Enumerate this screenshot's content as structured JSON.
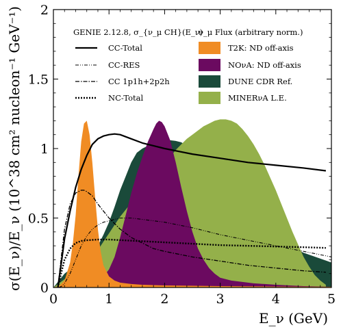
{
  "chart_data": {
    "type": "line",
    "title": "",
    "xlabel": "E_ν (GeV)",
    "ylabel": "σ(E_ν)/E_ν (10^38 cm² nucleon⁻¹ GeV⁻¹)",
    "xlim": [
      0,
      5
    ],
    "ylim": [
      0,
      2
    ],
    "x_ticks": [
      "0",
      "1",
      "2",
      "3",
      "4",
      "5"
    ],
    "y_ticks": [
      "0",
      "0.5",
      "1",
      "1.5",
      "2"
    ],
    "grid": false,
    "legend_cross_section": {
      "header": "GENIE 2.12.8, σ_{ν_μ CH}(E_ν)",
      "entries": [
        "CC-Total",
        "CC-RES",
        "CC 1p1h+2p2h",
        "NC-Total"
      ]
    },
    "legend_flux": {
      "header": "ν_μ Flux (arbitrary norm.)",
      "entries": [
        "T2K: ND off-axis",
        "NOνA: ND off-axis",
        "DUNE CDR Ref.",
        "MINERνA L.E."
      ]
    },
    "flux": [
      {
        "name": "DUNE CDR Ref.",
        "color": "#1a4a3a",
        "x": [
          0.0,
          0.1,
          0.2,
          0.3,
          0.4,
          0.5,
          0.6,
          0.7,
          0.8,
          0.9,
          1.0,
          1.1,
          1.2,
          1.3,
          1.4,
          1.5,
          1.6,
          1.7,
          1.8,
          1.9,
          2.0,
          2.1,
          2.2,
          2.3,
          2.4,
          2.5,
          2.6,
          2.7,
          2.8,
          2.9,
          3.0,
          3.1,
          3.2,
          3.3,
          3.4,
          3.5,
          3.6,
          3.7,
          3.8,
          3.9,
          4.0,
          4.5,
          5.0
        ],
        "y": [
          0.0,
          0.05,
          0.1,
          0.13,
          0.15,
          0.17,
          0.2,
          0.24,
          0.3,
          0.38,
          0.47,
          0.58,
          0.7,
          0.8,
          0.9,
          0.97,
          1.0,
          1.02,
          1.03,
          1.04,
          1.05,
          1.06,
          1.055,
          1.045,
          1.02,
          1.0,
          0.96,
          0.92,
          0.86,
          0.8,
          0.73,
          0.68,
          0.63,
          0.58,
          0.54,
          0.5,
          0.47,
          0.43,
          0.4,
          0.37,
          0.34,
          0.25,
          0.18
        ]
      },
      {
        "name": "MINERνA L.E.",
        "color": "#94b04a",
        "x": [
          0.0,
          0.1,
          0.2,
          0.3,
          0.4,
          0.5,
          0.6,
          0.7,
          0.8,
          0.9,
          1.0,
          1.1,
          1.2,
          1.3,
          1.4,
          1.5,
          1.6,
          1.7,
          1.8,
          1.9,
          2.0,
          2.1,
          2.2,
          2.3,
          2.4,
          2.5,
          2.6,
          2.7,
          2.8,
          2.9,
          3.0,
          3.1,
          3.2,
          3.3,
          3.4,
          3.5,
          3.6,
          3.7,
          3.8,
          3.9,
          4.0,
          4.1,
          4.2,
          4.3,
          4.4,
          4.5,
          4.6,
          4.7,
          4.8,
          4.9
        ],
        "y": [
          0.0,
          0.03,
          0.06,
          0.1,
          0.13,
          0.15,
          0.18,
          0.22,
          0.27,
          0.33,
          0.39,
          0.45,
          0.51,
          0.56,
          0.61,
          0.66,
          0.71,
          0.75,
          0.8,
          0.84,
          0.89,
          0.94,
          0.99,
          1.03,
          1.07,
          1.1,
          1.13,
          1.16,
          1.18,
          1.2,
          1.21,
          1.21,
          1.2,
          1.18,
          1.14,
          1.09,
          1.03,
          0.96,
          0.88,
          0.79,
          0.7,
          0.6,
          0.5,
          0.4,
          0.31,
          0.22,
          0.15,
          0.09,
          0.05,
          0.02
        ]
      },
      {
        "name": "NOνA: ND off-axis",
        "color": "#6b0a60",
        "x": [
          0.0,
          0.2,
          0.4,
          0.6,
          0.8,
          0.9,
          1.0,
          1.1,
          1.2,
          1.3,
          1.4,
          1.5,
          1.6,
          1.7,
          1.8,
          1.85,
          1.9,
          1.95,
          2.0,
          2.1,
          2.2,
          2.3,
          2.4,
          2.5,
          2.6,
          2.7,
          2.8,
          2.9,
          3.0,
          3.2,
          3.4,
          3.6,
          3.8,
          4.0,
          4.5,
          5.0
        ],
        "y": [
          0.0,
          0.01,
          0.02,
          0.03,
          0.05,
          0.08,
          0.13,
          0.22,
          0.36,
          0.52,
          0.68,
          0.82,
          0.94,
          1.05,
          1.14,
          1.18,
          1.2,
          1.19,
          1.16,
          1.06,
          0.9,
          0.72,
          0.55,
          0.4,
          0.28,
          0.2,
          0.14,
          0.1,
          0.07,
          0.05,
          0.04,
          0.03,
          0.025,
          0.02,
          0.01,
          0.005
        ]
      },
      {
        "name": "T2K: ND off-axis",
        "color": "#f08c24",
        "x": [
          0.0,
          0.1,
          0.2,
          0.3,
          0.35,
          0.4,
          0.45,
          0.5,
          0.55,
          0.6,
          0.65,
          0.7,
          0.75,
          0.8,
          0.85,
          0.9,
          1.0,
          1.1,
          1.2,
          1.4,
          1.6,
          2.0,
          3.0,
          4.0,
          5.0
        ],
        "y": [
          0.0,
          0.01,
          0.05,
          0.18,
          0.32,
          0.52,
          0.8,
          1.05,
          1.18,
          1.2,
          1.1,
          0.9,
          0.65,
          0.42,
          0.26,
          0.16,
          0.08,
          0.05,
          0.035,
          0.025,
          0.02,
          0.015,
          0.01,
          0.007,
          0.005
        ]
      }
    ],
    "series": [
      {
        "name": "CC-Total",
        "style": "solid",
        "x": [
          0.08,
          0.15,
          0.2,
          0.3,
          0.4,
          0.5,
          0.6,
          0.7,
          0.8,
          0.9,
          1.0,
          1.1,
          1.2,
          1.4,
          1.6,
          1.8,
          2.0,
          2.5,
          3.0,
          3.5,
          4.0,
          4.5,
          4.9
        ],
        "y": [
          0.0,
          0.2,
          0.35,
          0.55,
          0.72,
          0.85,
          0.95,
          1.03,
          1.07,
          1.09,
          1.1,
          1.105,
          1.1,
          1.07,
          1.04,
          1.02,
          1.0,
          0.96,
          0.93,
          0.9,
          0.88,
          0.86,
          0.84
        ]
      },
      {
        "name": "CC-RES",
        "style": "dash-dot-dot",
        "x": [
          0.1,
          0.15,
          0.2,
          0.3,
          0.4,
          0.5,
          0.6,
          0.7,
          0.8,
          0.9,
          1.0,
          1.2,
          1.4,
          1.6,
          1.8,
          2.0,
          2.5,
          3.0,
          3.5,
          4.0,
          4.5,
          5.0
        ],
        "y": [
          0.0,
          0.01,
          0.03,
          0.1,
          0.2,
          0.3,
          0.37,
          0.42,
          0.45,
          0.47,
          0.48,
          0.5,
          0.5,
          0.49,
          0.48,
          0.47,
          0.43,
          0.38,
          0.34,
          0.3,
          0.26,
          0.22
        ]
      },
      {
        "name": "CC 1p1h+2p2h",
        "style": "dash-dot",
        "x": [
          0.08,
          0.15,
          0.2,
          0.3,
          0.4,
          0.5,
          0.55,
          0.6,
          0.7,
          0.8,
          0.9,
          1.0,
          1.2,
          1.4,
          1.6,
          1.8,
          2.0,
          2.5,
          3.0,
          3.5,
          4.0,
          4.5,
          4.9
        ],
        "y": [
          0.0,
          0.25,
          0.42,
          0.6,
          0.68,
          0.7,
          0.7,
          0.69,
          0.66,
          0.6,
          0.55,
          0.5,
          0.42,
          0.36,
          0.32,
          0.28,
          0.26,
          0.22,
          0.19,
          0.16,
          0.14,
          0.12,
          0.11
        ]
      },
      {
        "name": "NC-Total",
        "style": "dotted",
        "x": [
          0.08,
          0.15,
          0.2,
          0.3,
          0.4,
          0.5,
          0.6,
          0.8,
          1.0,
          1.5,
          2.0,
          2.5,
          3.0,
          3.5,
          4.0,
          4.5,
          4.9
        ],
        "y": [
          0.0,
          0.12,
          0.2,
          0.28,
          0.32,
          0.335,
          0.34,
          0.345,
          0.345,
          0.335,
          0.325,
          0.315,
          0.305,
          0.3,
          0.295,
          0.29,
          0.285
        ]
      }
    ]
  }
}
